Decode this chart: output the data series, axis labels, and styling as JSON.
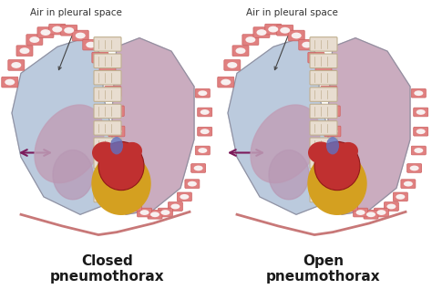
{
  "background_color": "#ffffff",
  "title_left": "Closed\npneumothorax",
  "title_right": "Open\npneumothorax",
  "label_left": "Air in pleural space",
  "label_right": "Air in pleural space",
  "lung_left_fill": "#b8c8dc",
  "lung_right_fill": "#c8a8bc",
  "lung_inner_fill": "#c0a0b8",
  "rib_salmon": "#e08080",
  "rib_white": "#f0e8e8",
  "spine_light": "#e8ddd0",
  "spine_dark": "#c0b090",
  "heart_red": "#c03030",
  "heart_dark_red": "#901818",
  "peri_gold": "#d4a020",
  "peri_yellow": "#e8c040",
  "arrow_color": "#7b1a5a",
  "text_color": "#1a1a1a",
  "label_color": "#333333",
  "lung_outline": "#9090a0",
  "rib_outline": "#cc6060"
}
